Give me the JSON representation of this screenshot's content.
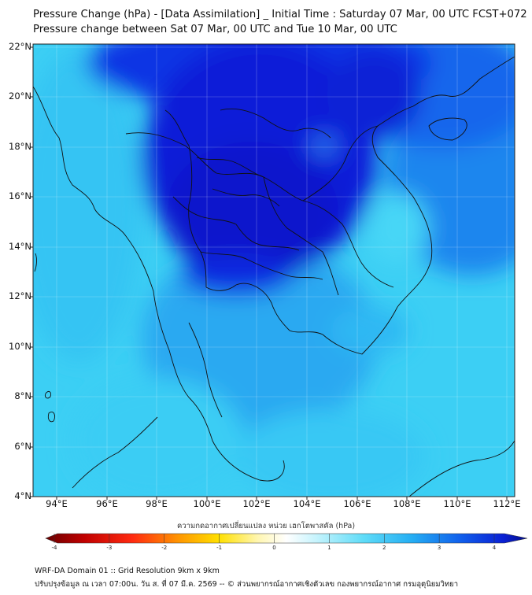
{
  "title_line1": "Pressure Change (hPa) - [Data Assimilation] _ Initial Time : Saturday 07 Mar, 00 UTC FCST+072",
  "title_line2": "Pressure change between Sat 07 Mar, 00 UTC and Tue 10 Mar, 00 UTC",
  "lat_labels": [
    "22°N",
    "20°N",
    "18°N",
    "16°N",
    "14°N",
    "12°N",
    "10°N",
    "8°N",
    "6°N",
    "4°N"
  ],
  "lon_labels": [
    "94°E",
    "96°E",
    "98°E",
    "100°E",
    "102°E",
    "104°E",
    "106°E",
    "108°E",
    "110°E",
    "112°E"
  ],
  "colorbar": {
    "title": "ความกดอากาศเปลี่ยนแปลง หน่วย เฮกโตพาสคัล (hPa)",
    "ticks": [
      "-4",
      "-3",
      "-2",
      "-1",
      "0",
      "1",
      "2",
      "3",
      "4"
    ],
    "range": [
      -4,
      4
    ]
  },
  "colors": {
    "field_light": "#3fd6f5",
    "field_mid": "#1e9cf2",
    "field_deep": "#0a1fd8",
    "coastline": "#111111"
  },
  "footer_line1": "WRF-DA Domain 01 :: Grid Resolution 9km x 9km",
  "footer_line2": "ปรับปรุงข้อมูล ณ เวลา 07:00น. วัน ส. ที่ 07 มี.ค. 2569 -- © ส่วนพยากรณ์อากาศเชิงตัวเลข กองพยากรณ์อากาศ กรมอุตุนิยมวิทยา"
}
